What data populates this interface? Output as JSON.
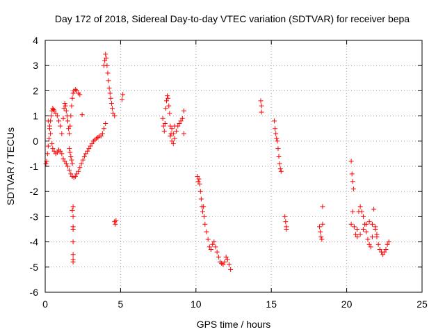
{
  "chart_data": {
    "type": "scatter",
    "title": "Day 172 of 2018, Sidereal Day-to-day VTEC variation (SDTVAR) for receiver bepa",
    "xlabel": "GPS time / hours",
    "ylabel": "SDTVAR / TECUs",
    "xlim": [
      0,
      25
    ],
    "ylim": [
      -6,
      4
    ],
    "xticks": [
      0,
      5,
      10,
      15,
      20,
      25
    ],
    "yticks": [
      -6,
      -5,
      -4,
      -3,
      -2,
      -1,
      0,
      1,
      2,
      3,
      4
    ],
    "grid": true,
    "marker": "plus",
    "color": "#ff0000",
    "series": [
      {
        "name": "SDTVAR",
        "points": [
          [
            0.05,
            -0.9
          ],
          [
            0.1,
            -0.8
          ],
          [
            0.15,
            -0.5
          ],
          [
            0.2,
            -0.2
          ],
          [
            0.25,
            0.1
          ],
          [
            0.3,
            0.5
          ],
          [
            0.35,
            0.8
          ],
          [
            0.4,
            1.0
          ],
          [
            0.45,
            1.2
          ],
          [
            0.5,
            1.3
          ],
          [
            0.55,
            1.25
          ],
          [
            0.6,
            1.2
          ],
          [
            0.7,
            1.1
          ],
          [
            0.8,
            1.0
          ],
          [
            0.9,
            0.8
          ],
          [
            1.0,
            0.6
          ],
          [
            1.1,
            0.3
          ],
          [
            0.2,
            0.8
          ],
          [
            0.3,
            0.6
          ],
          [
            0.35,
            0.3
          ],
          [
            0.45,
            -0.1
          ],
          [
            0.5,
            -0.3
          ],
          [
            0.6,
            -0.4
          ],
          [
            0.7,
            -0.5
          ],
          [
            0.8,
            -0.45
          ],
          [
            0.9,
            -0.35
          ],
          [
            1.0,
            -0.4
          ],
          [
            1.1,
            -0.5
          ],
          [
            1.2,
            0.9
          ],
          [
            1.25,
            1.3
          ],
          [
            1.3,
            1.5
          ],
          [
            1.35,
            1.4
          ],
          [
            1.4,
            1.2
          ],
          [
            1.45,
            1.0
          ],
          [
            1.5,
            0.8
          ],
          [
            1.55,
            0.5
          ],
          [
            1.6,
            0.3
          ],
          [
            1.65,
            0.6
          ],
          [
            1.7,
            1.0
          ],
          [
            1.75,
            1.4
          ],
          [
            1.8,
            1.7
          ],
          [
            1.85,
            1.9
          ],
          [
            1.9,
            2.0
          ],
          [
            2.0,
            2.05
          ],
          [
            2.1,
            2.0
          ],
          [
            2.2,
            1.9
          ],
          [
            2.3,
            1.85
          ],
          [
            2.45,
            1.05
          ],
          [
            1.2,
            -0.7
          ],
          [
            1.3,
            -0.8
          ],
          [
            1.4,
            -0.9
          ],
          [
            1.5,
            -1.0
          ],
          [
            1.6,
            -1.15
          ],
          [
            1.7,
            -1.3
          ],
          [
            1.8,
            -1.4
          ],
          [
            1.9,
            -1.45
          ],
          [
            2.0,
            -1.4
          ],
          [
            2.1,
            -1.3
          ],
          [
            2.2,
            -1.2
          ],
          [
            2.3,
            -1.05
          ],
          [
            2.4,
            -0.9
          ],
          [
            2.5,
            -0.75
          ],
          [
            2.6,
            -0.6
          ],
          [
            2.7,
            -0.5
          ],
          [
            2.8,
            -0.4
          ],
          [
            2.9,
            -0.3
          ],
          [
            3.0,
            -0.2
          ],
          [
            3.1,
            -0.1
          ],
          [
            3.2,
            0.0
          ],
          [
            3.3,
            0.05
          ],
          [
            3.4,
            0.1
          ],
          [
            3.5,
            0.15
          ],
          [
            3.6,
            0.2
          ],
          [
            3.7,
            0.2
          ],
          [
            3.8,
            0.3
          ],
          [
            3.9,
            0.5
          ],
          [
            4.0,
            0.7
          ],
          [
            1.6,
            -0.3
          ],
          [
            1.65,
            -0.45
          ],
          [
            1.7,
            -0.6
          ],
          [
            1.75,
            -0.75
          ],
          [
            1.8,
            -0.9
          ],
          [
            1.8,
            -2.75
          ],
          [
            1.85,
            -2.6
          ],
          [
            1.85,
            -3.0
          ],
          [
            1.85,
            -3.4
          ],
          [
            1.85,
            -3.5
          ],
          [
            1.85,
            -4.0
          ],
          [
            1.85,
            -4.5
          ],
          [
            1.85,
            -4.7
          ],
          [
            1.85,
            -4.8
          ],
          [
            3.9,
            3.0
          ],
          [
            3.95,
            3.2
          ],
          [
            4.0,
            3.45
          ],
          [
            4.05,
            3.3
          ],
          [
            4.1,
            3.0
          ],
          [
            4.15,
            2.7
          ],
          [
            4.2,
            2.4
          ],
          [
            4.25,
            2.1
          ],
          [
            4.3,
            1.9
          ],
          [
            4.35,
            1.7
          ],
          [
            4.4,
            1.5
          ],
          [
            4.45,
            1.3
          ],
          [
            4.5,
            1.1
          ],
          [
            4.6,
            1.0
          ],
          [
            4.6,
            -3.2
          ],
          [
            4.65,
            -3.3
          ],
          [
            4.7,
            -3.15
          ],
          [
            5.1,
            1.65
          ],
          [
            5.15,
            1.85
          ],
          [
            7.8,
            0.9
          ],
          [
            7.85,
            0.6
          ],
          [
            7.9,
            0.4
          ],
          [
            7.95,
            0.7
          ],
          [
            8.0,
            1.3
          ],
          [
            8.05,
            1.6
          ],
          [
            8.1,
            1.8
          ],
          [
            8.15,
            1.7
          ],
          [
            8.2,
            1.4
          ],
          [
            8.25,
            1.1
          ],
          [
            8.3,
            0.6
          ],
          [
            8.35,
            0.3
          ],
          [
            8.4,
            0.0
          ],
          [
            8.5,
            -0.1
          ],
          [
            8.6,
            0.1
          ],
          [
            8.7,
            0.4
          ],
          [
            8.8,
            0.6
          ],
          [
            8.9,
            0.7
          ],
          [
            9.0,
            0.8
          ],
          [
            9.1,
            0.9
          ],
          [
            9.2,
            1.2
          ],
          [
            9.2,
            0.3
          ],
          [
            8.3,
            0.2
          ],
          [
            8.4,
            0.5
          ],
          [
            8.5,
            0.3
          ],
          [
            8.6,
            0.6
          ],
          [
            10.1,
            -1.4
          ],
          [
            10.15,
            -1.6
          ],
          [
            10.2,
            -1.5
          ],
          [
            10.25,
            -1.7
          ],
          [
            10.3,
            -2.0
          ],
          [
            10.35,
            -2.3
          ],
          [
            10.4,
            -2.6
          ],
          [
            10.45,
            -2.8
          ],
          [
            10.5,
            -2.6
          ],
          [
            10.55,
            -3.0
          ],
          [
            10.6,
            -3.3
          ],
          [
            10.7,
            -3.6
          ],
          [
            10.8,
            -3.9
          ],
          [
            10.9,
            -4.2
          ],
          [
            11.0,
            -4.3
          ],
          [
            11.1,
            -4.1
          ],
          [
            11.2,
            -4.0
          ],
          [
            11.3,
            -4.2
          ],
          [
            11.4,
            -4.4
          ],
          [
            11.5,
            -4.6
          ],
          [
            11.6,
            -4.8
          ],
          [
            11.7,
            -4.85
          ],
          [
            11.8,
            -4.9
          ],
          [
            11.9,
            -4.8
          ],
          [
            12.0,
            -4.6
          ],
          [
            12.1,
            -4.7
          ],
          [
            12.2,
            -4.9
          ],
          [
            12.3,
            -5.1
          ],
          [
            14.3,
            1.6
          ],
          [
            14.35,
            1.4
          ],
          [
            14.35,
            1.15
          ],
          [
            15.2,
            0.8
          ],
          [
            15.25,
            0.5
          ],
          [
            15.3,
            0.3
          ],
          [
            15.35,
            0.1
          ],
          [
            15.4,
            0.0
          ],
          [
            15.45,
            -0.3
          ],
          [
            15.5,
            -0.6
          ],
          [
            15.55,
            -0.9
          ],
          [
            15.6,
            -1.1
          ],
          [
            15.65,
            -1.2
          ],
          [
            15.9,
            -3.0
          ],
          [
            15.95,
            -3.2
          ],
          [
            16.0,
            -3.4
          ],
          [
            16.0,
            -3.5
          ],
          [
            18.2,
            -3.4
          ],
          [
            18.25,
            -3.6
          ],
          [
            18.3,
            -3.8
          ],
          [
            18.35,
            -3.9
          ],
          [
            18.4,
            -2.6
          ],
          [
            18.4,
            -3.3
          ],
          [
            20.3,
            -0.8
          ],
          [
            20.35,
            -1.3
          ],
          [
            20.4,
            -1.6
          ],
          [
            20.45,
            -1.9
          ],
          [
            20.3,
            -3.3
          ],
          [
            20.4,
            -2.8
          ],
          [
            20.5,
            -3.4
          ],
          [
            20.6,
            -3.7
          ],
          [
            20.7,
            -3.5
          ],
          [
            20.8,
            -2.8
          ],
          [
            20.9,
            -2.6
          ],
          [
            21.0,
            -2.8
          ],
          [
            21.1,
            -3.0
          ],
          [
            21.2,
            -3.3
          ],
          [
            21.3,
            -3.6
          ],
          [
            21.4,
            -3.9
          ],
          [
            21.5,
            -4.1
          ],
          [
            21.6,
            -4.2
          ],
          [
            21.7,
            -3.8
          ],
          [
            21.8,
            -2.7
          ],
          [
            21.9,
            -3.4
          ],
          [
            22.0,
            -3.8
          ],
          [
            22.1,
            -4.1
          ],
          [
            22.2,
            -4.3
          ],
          [
            22.3,
            -4.4
          ],
          [
            22.4,
            -4.5
          ],
          [
            22.5,
            -4.4
          ],
          [
            22.6,
            -4.3
          ],
          [
            22.7,
            -4.1
          ],
          [
            22.8,
            -4.0
          ],
          [
            20.7,
            -3.8
          ],
          [
            20.9,
            -3.7
          ],
          [
            21.1,
            -3.5
          ],
          [
            21.3,
            -3.3
          ],
          [
            21.5,
            -3.2
          ],
          [
            21.7,
            -3.3
          ],
          [
            21.9,
            -3.5
          ],
          [
            22.0,
            -3.7
          ]
        ]
      }
    ]
  }
}
